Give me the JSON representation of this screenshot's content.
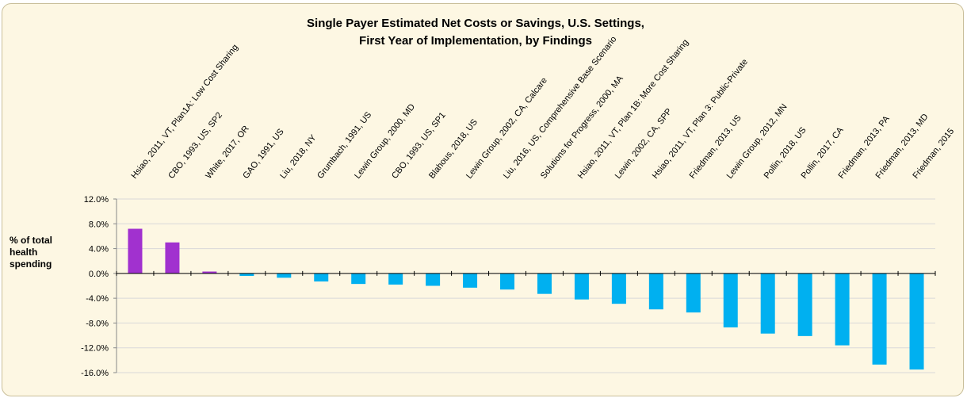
{
  "chart_data": {
    "type": "bar",
    "title": [
      "Single Payer Estimated Net Costs or Savings, U.S. Settings,",
      "First Year of Implementation, by Findings"
    ],
    "y_label": "% of total health spending",
    "categories": [
      "Hsiao, 2011, VT, Plan1A: Low Cost Sharing",
      "CBO, 1993, US, SP2",
      "White, 2017, OR",
      "GAO, 1991, US",
      "Liu, 2018, NY",
      "Grumbach, 1991, US",
      "Lewin Group, 2000, MD",
      "CBO, 1993, US, SP1",
      "Blahous, 2018, US",
      "Lewin Group, 2002, CA, Calcare",
      "Liu, 2016, US, Comprehensive Base Scenario",
      "Solutions for Progress, 2000, MA",
      "Hsiao, 2011, VT, Plan 1B: More Cost Sharing",
      "Lewin, 2002, CA, SPP",
      "Hsiao, 2011, VT, Plan 3: Public-Private",
      "Friedman, 2013, US",
      "Lewin Group, 2012, MN",
      "Pollin, 2018, US",
      "Pollin, 2017, CA",
      "Friedman, 2013, PA",
      "Friedman, 2013, MD",
      "Friedman, 2015"
    ],
    "values": [
      7.2,
      5.0,
      0.3,
      -0.4,
      -0.7,
      -1.3,
      -1.7,
      -1.8,
      -2.0,
      -2.3,
      -2.6,
      -3.3,
      -4.2,
      -4.9,
      -5.8,
      -6.3,
      -8.7,
      -9.7,
      -10.1,
      -11.6,
      -14.7,
      -15.5
    ],
    "colors": [
      "#a131cf",
      "#a131cf",
      "#a131cf",
      "#00b0f0",
      "#00b0f0",
      "#00b0f0",
      "#00b0f0",
      "#00b0f0",
      "#00b0f0",
      "#00b0f0",
      "#00b0f0",
      "#00b0f0",
      "#00b0f0",
      "#00b0f0",
      "#00b0f0",
      "#00b0f0",
      "#00b0f0",
      "#00b0f0",
      "#00b0f0",
      "#00b0f0",
      "#00b0f0",
      "#00b0f0"
    ],
    "ylim": [
      -16,
      12
    ],
    "yticks": [
      {
        "value": -16,
        "label": "-16.0%"
      },
      {
        "value": -12,
        "label": "-12.0%"
      },
      {
        "value": -8,
        "label": "-8.0%"
      },
      {
        "value": -4,
        "label": "-4.0%"
      },
      {
        "value": 0,
        "label": "0.0%"
      },
      {
        "value": 4,
        "label": "4.0%"
      },
      {
        "value": 8,
        "label": "8.0%"
      },
      {
        "value": 12,
        "label": "12.0%"
      }
    ],
    "grid": true
  }
}
